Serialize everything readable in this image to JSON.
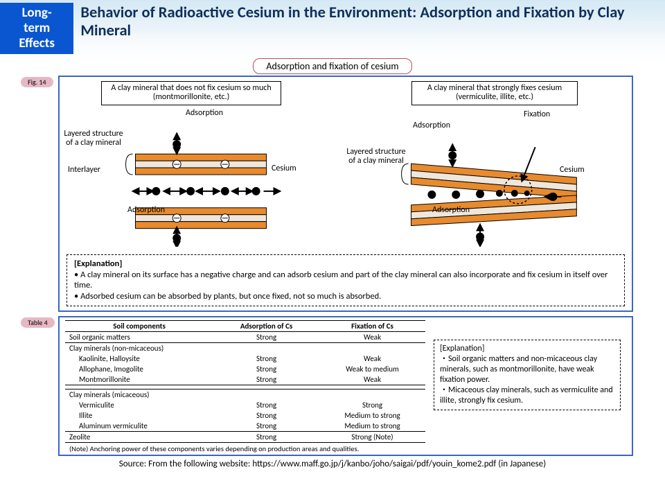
{
  "header": {
    "badge_line1": "Long-term",
    "badge_line2": "Effects",
    "title": "Behavior of Radioactive Cesium in the Environment: Adsorption and Fixation by Clay Mineral",
    "badge_bg": "#0a56d0",
    "title_color": "#0e2f5a"
  },
  "subtitle": "Adsorption and fixation of cesium",
  "figure": {
    "label": "Fig. 14",
    "left_box": "A clay mineral that does not fix cesium so much (montmorillonite, etc.)",
    "right_box": "A clay mineral that strongly fixes cesium (vermiculite, illite, etc.)",
    "labels": {
      "adsorption": "Adsorption",
      "layered": "Layered structure of a clay mineral",
      "interlayer": "Interlayer",
      "cesium": "Cesium",
      "fixation": "Fixation"
    },
    "colors": {
      "clay_fill": "#e88a2e",
      "clay_inner": "#efe7db",
      "panel_border": "#3a66c4",
      "cesium": "#000000"
    }
  },
  "explanation1": {
    "head": "[Explanation]",
    "b1": "A clay mineral on its surface has a negative charge and can adsorb cesium and part of the clay mineral can also incorporate and fix cesium in itself over time.",
    "b2": "Adsorbed cesium can be absorbed by plants, but once fixed, not so much is absorbed."
  },
  "table": {
    "label": "Table 4",
    "columns": [
      "Soil components",
      "Adsorption of Cs",
      "Fixation of Cs"
    ],
    "rows": [
      {
        "name": "Soil organic matters",
        "ads": "Strong",
        "fix": "Weak",
        "type": "single"
      },
      {
        "name": "Clay minerals (non-micaceous)",
        "type": "group"
      },
      {
        "name": "Kaolinite, Halloysite",
        "ads": "Strong",
        "fix": "Weak",
        "type": "sub"
      },
      {
        "name": "Allophane, Imogolite",
        "ads": "Strong",
        "fix": "Weak to medium",
        "type": "sub"
      },
      {
        "name": "Montmorillonite",
        "ads": "Strong",
        "fix": "Weak",
        "type": "sub-last"
      },
      {
        "name": "Clay minerals (micaceous)",
        "type": "group"
      },
      {
        "name": "Vermiculite",
        "ads": "Strong",
        "fix": "Strong",
        "type": "sub"
      },
      {
        "name": "Illite",
        "ads": "Strong",
        "fix": "Medium to strong",
        "type": "sub"
      },
      {
        "name": "Aluminum vermiculite",
        "ads": "Strong",
        "fix": "Medium to strong",
        "type": "sub-last"
      },
      {
        "name": "Zeolite",
        "ads": "Strong",
        "fix": "Strong (Note)",
        "type": "single"
      }
    ],
    "note": "(Note) Anchoring power of these components varies depending on production areas and qualities."
  },
  "explanation2": {
    "head": "[Explanation]",
    "b1": "Soil organic matters and non-micaceous clay minerals, such as montmorillonite, have weak fixation power.",
    "b2": "Micaceous clay minerals, such as vermiculite and illite, strongly fix cesium."
  },
  "source": "Source: From the following website: https://www.maff.go.jp/j/kanbo/joho/saigai/pdf/youin_kome2.pdf (in Japanese)"
}
